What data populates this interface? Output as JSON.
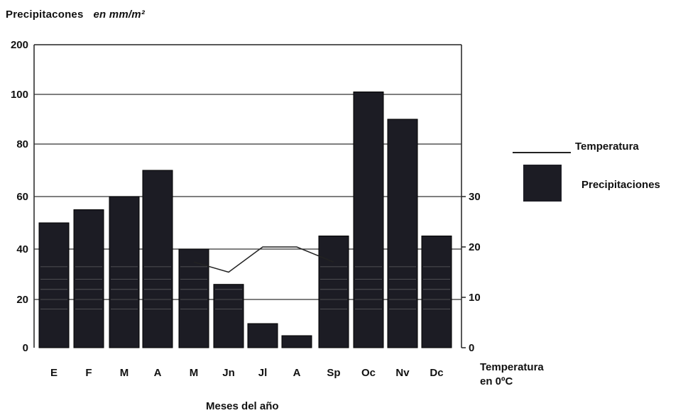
{
  "chart_data": {
    "type": "bar",
    "title": "Precipitacones",
    "title_units": "en mm/m²",
    "categories": [
      "E",
      "F",
      "M",
      "A",
      "M",
      "Jn",
      "Jl",
      "A",
      "Sp",
      "Oc",
      "Nv",
      "Dc"
    ],
    "series": [
      {
        "name": "Precipitaciones",
        "type": "bar",
        "axis": "left",
        "color": "#1c1c24",
        "values": [
          50,
          55,
          60,
          70,
          40,
          26,
          10,
          5,
          45,
          105,
          90,
          45
        ]
      },
      {
        "name": "Temperatura",
        "type": "line",
        "axis": "right",
        "color": "#222222",
        "points": [
          {
            "x": "M",
            "y": 17
          },
          {
            "x": "Jn",
            "y": 15
          },
          {
            "x": "Jl",
            "y": 20
          },
          {
            "x": "A",
            "y": 20
          },
          {
            "x": "Sp",
            "y": 17
          }
        ]
      }
    ],
    "left_axis": {
      "ticks": [
        {
          "label": "0",
          "value": 0
        },
        {
          "label": "20",
          "value": 20
        },
        {
          "label": "40",
          "value": 40
        },
        {
          "label": "60",
          "value": 60
        },
        {
          "label": "80",
          "value": 80
        },
        {
          "label": "100",
          "value": 100
        },
        {
          "label": "200",
          "value": 200
        }
      ]
    },
    "right_axis": {
      "label_line1": "Temperatura",
      "label_line2": "en 0ºC",
      "ticks": [
        {
          "label": "0",
          "value": 0
        },
        {
          "label": "10",
          "value": 10
        },
        {
          "label": "20",
          "value": 20
        },
        {
          "label": "30",
          "value": 30
        }
      ]
    },
    "xlabel": "Meses del año",
    "legend": {
      "position": "right",
      "line_label": "Temperatura",
      "box_label": "Precipitaciones"
    },
    "grid": true
  }
}
